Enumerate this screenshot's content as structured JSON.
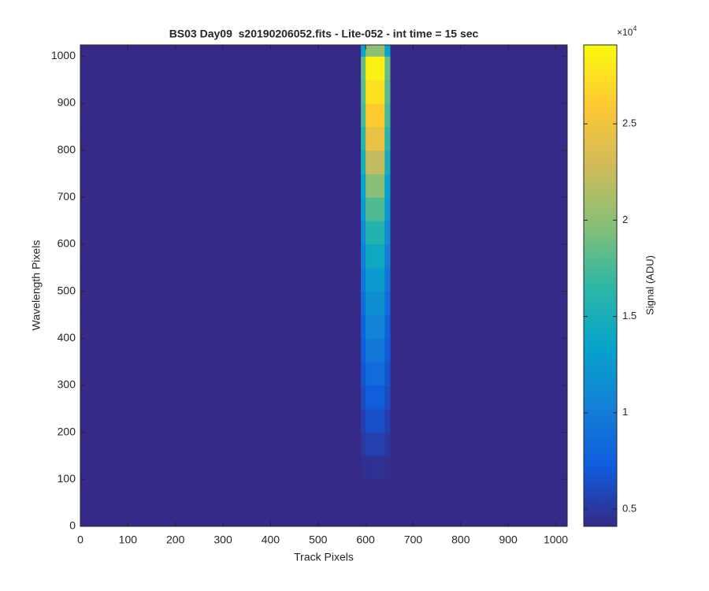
{
  "chart_data": {
    "type": "heatmap",
    "title": "BS03 Day09  s20190206052.fits - Lite-052 - int time = 15 sec",
    "xlabel": "Track Pixels",
    "ylabel": "Wavelength Pixels",
    "x_edges": [
      0,
      590,
      600,
      640,
      652,
      1024
    ],
    "y_edges": [
      0,
      50,
      100,
      150,
      200,
      250,
      300,
      350,
      400,
      450,
      500,
      550,
      600,
      650,
      700,
      750,
      800,
      850,
      900,
      950,
      1000,
      1024
    ],
    "z": [
      [
        0.41,
        0.41,
        0.41,
        0.41,
        0.41
      ],
      [
        0.41,
        0.41,
        0.41,
        0.41,
        0.41
      ],
      [
        0.41,
        0.43,
        0.45,
        0.43,
        0.41
      ],
      [
        0.41,
        0.49,
        0.55,
        0.49,
        0.41
      ],
      [
        0.41,
        0.55,
        0.65,
        0.55,
        0.41
      ],
      [
        0.41,
        0.61,
        0.75,
        0.61,
        0.41
      ],
      [
        0.41,
        0.67,
        0.85,
        0.67,
        0.41
      ],
      [
        0.41,
        0.73,
        0.95,
        0.73,
        0.41
      ],
      [
        0.41,
        0.79,
        1.05,
        0.79,
        0.41
      ],
      [
        0.41,
        0.85,
        1.15,
        0.85,
        0.41
      ],
      [
        0.41,
        0.93,
        1.28,
        0.93,
        0.41
      ],
      [
        0.41,
        1.01,
        1.42,
        1.01,
        0.41
      ],
      [
        0.41,
        1.11,
        1.58,
        1.11,
        0.41
      ],
      [
        0.41,
        1.23,
        1.78,
        1.23,
        0.41
      ],
      [
        0.41,
        1.35,
        1.98,
        1.35,
        0.41
      ],
      [
        0.41,
        1.5,
        2.22,
        1.5,
        0.41
      ],
      [
        0.41,
        1.63,
        2.45,
        1.63,
        0.41
      ],
      [
        0.41,
        1.74,
        2.62,
        1.74,
        0.41
      ],
      [
        0.41,
        1.81,
        2.75,
        1.81,
        0.41
      ],
      [
        0.41,
        1.87,
        2.85,
        1.87,
        0.41
      ],
      [
        0.41,
        1.36,
        2.0,
        1.36,
        0.41
      ]
    ],
    "xlim": [
      0,
      1024
    ],
    "ylim": [
      0,
      1024
    ],
    "xticks": [
      0,
      100,
      200,
      300,
      400,
      500,
      600,
      700,
      800,
      900,
      1000
    ],
    "yticks": [
      0,
      100,
      200,
      300,
      400,
      500,
      600,
      700,
      800,
      900,
      1000
    ],
    "colorbar_label": "Signal (ADU)",
    "colorbar_multiplier": {
      "base": "×10",
      "power": "4"
    },
    "clim": [
      0.41,
      2.91
    ],
    "cticks": [
      0.5,
      1,
      1.5,
      2,
      2.5
    ],
    "colormap": [
      "#352a87",
      "#0f5cdd",
      "#1481d6",
      "#06a4ca",
      "#2eb7a4",
      "#87bf77",
      "#d1bb59",
      "#fec832",
      "#f9fb0e"
    ]
  }
}
